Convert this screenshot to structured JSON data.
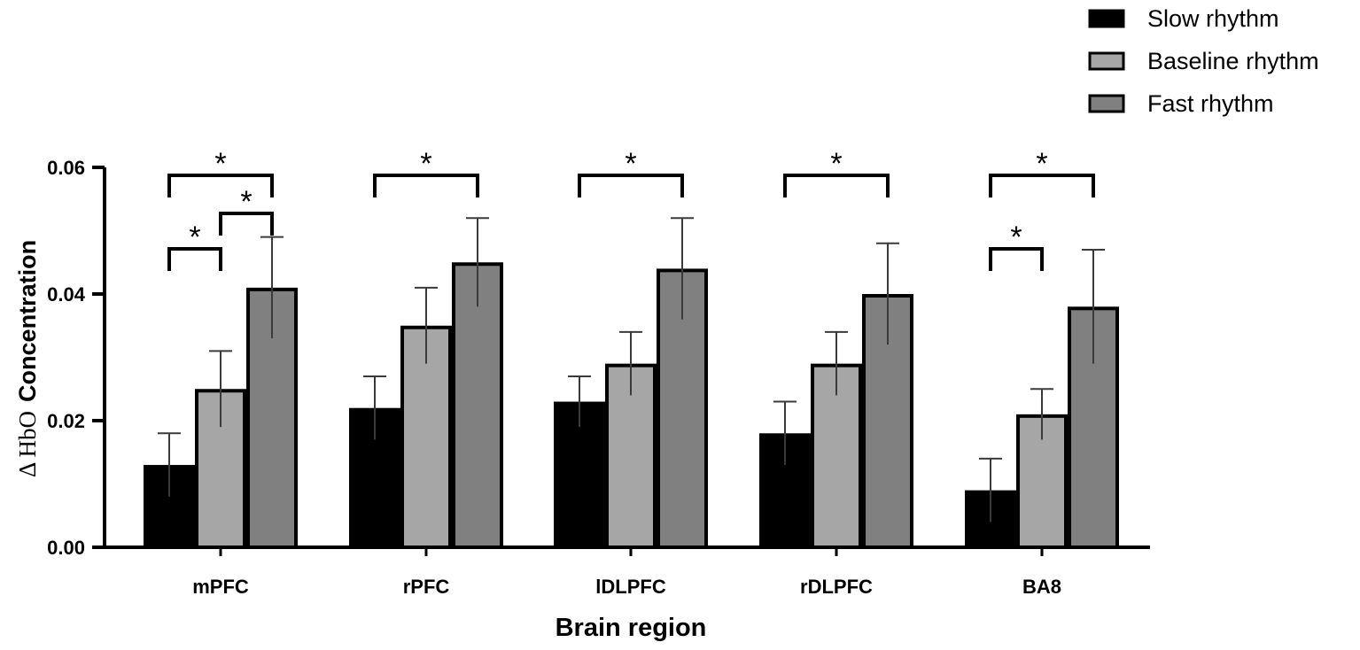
{
  "chart_data": {
    "type": "bar",
    "title": "",
    "xlabel": "Brain region",
    "ylabel_symbol": "Δ HbO",
    "ylabel_text": "Concentration",
    "ylim": [
      0,
      0.06
    ],
    "yticks": [
      "0.00",
      "0.02",
      "0.04",
      "0.06"
    ],
    "categories": [
      "mPFC",
      "rPFC",
      "lDLPFC",
      "rDLPFC",
      "BA8"
    ],
    "series": [
      {
        "name": "Slow rhythm",
        "color": "#000000",
        "values": [
          0.013,
          0.022,
          0.023,
          0.018,
          0.009
        ],
        "errors": [
          0.005,
          0.005,
          0.004,
          0.005,
          0.005
        ]
      },
      {
        "name": "Baseline rhythm",
        "color": "#a6a6a6",
        "values": [
          0.025,
          0.035,
          0.029,
          0.029,
          0.021
        ],
        "errors": [
          0.006,
          0.006,
          0.005,
          0.005,
          0.004
        ]
      },
      {
        "name": "Fast rhythm",
        "color": "#808080",
        "values": [
          0.041,
          0.045,
          0.044,
          0.04,
          0.038
        ],
        "errors": [
          0.008,
          0.007,
          0.008,
          0.008,
          0.009
        ]
      }
    ],
    "legend_position": "top-right",
    "significance": [
      {
        "category": 0,
        "from": 0,
        "to": 2,
        "level": 1,
        "label": "*"
      },
      {
        "category": 0,
        "from": 0,
        "to": 1,
        "level": 3,
        "label": "*"
      },
      {
        "category": 0,
        "from": 1,
        "to": 2,
        "level": 2,
        "label": "*"
      },
      {
        "category": 1,
        "from": 0,
        "to": 2,
        "level": 1,
        "label": "*"
      },
      {
        "category": 2,
        "from": 0,
        "to": 2,
        "level": 1,
        "label": "*"
      },
      {
        "category": 3,
        "from": 0,
        "to": 2,
        "level": 1,
        "label": "*"
      },
      {
        "category": 4,
        "from": 0,
        "to": 2,
        "level": 1,
        "label": "*"
      },
      {
        "category": 4,
        "from": 0,
        "to": 1,
        "level": 3,
        "label": "*"
      }
    ]
  }
}
